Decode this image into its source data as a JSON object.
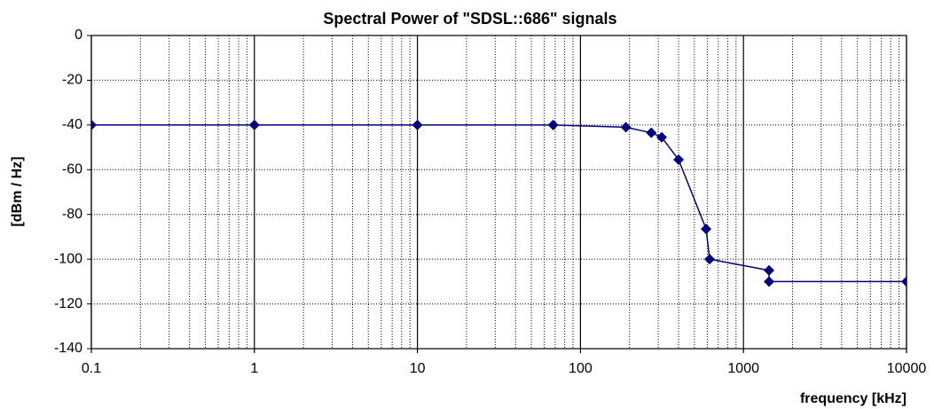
{
  "chart_data": {
    "type": "line",
    "title": "Spectral Power of \"SDSL::686\" signals",
    "x_label": "frequency [kHz]",
    "y_label": "[dBm / Hz]",
    "x": [
      0.1,
      1,
      10,
      68,
      190,
      272,
      315,
      400,
      590,
      620,
      1435,
      1435,
      10000
    ],
    "series": [
      {
        "name": "SDSL::686",
        "color": "#000080",
        "values": [
          -40,
          -40,
          -40,
          -40,
          -41,
          -43.5,
          -45.5,
          -55.5,
          -86.5,
          -100,
          -105,
          -110,
          -110
        ]
      }
    ],
    "xlog": true,
    "xlim": [
      0.1,
      10000
    ],
    "xticks": [
      0.1,
      1,
      10,
      100,
      1000,
      10000
    ],
    "xminorticks": [
      0.2,
      0.3,
      0.4,
      0.5,
      0.6,
      0.7,
      0.8,
      0.9,
      2,
      3,
      4,
      5,
      6,
      7,
      8,
      9,
      20,
      30,
      40,
      50,
      60,
      70,
      80,
      90,
      200,
      300,
      400,
      500,
      600,
      700,
      800,
      900,
      2000,
      3000,
      4000,
      5000,
      6000,
      7000,
      8000,
      9000
    ],
    "ylim": [
      -140,
      0
    ],
    "yticks": [
      0,
      -20,
      -40,
      -60,
      -80,
      -100,
      -120,
      -140
    ],
    "grid": true
  }
}
